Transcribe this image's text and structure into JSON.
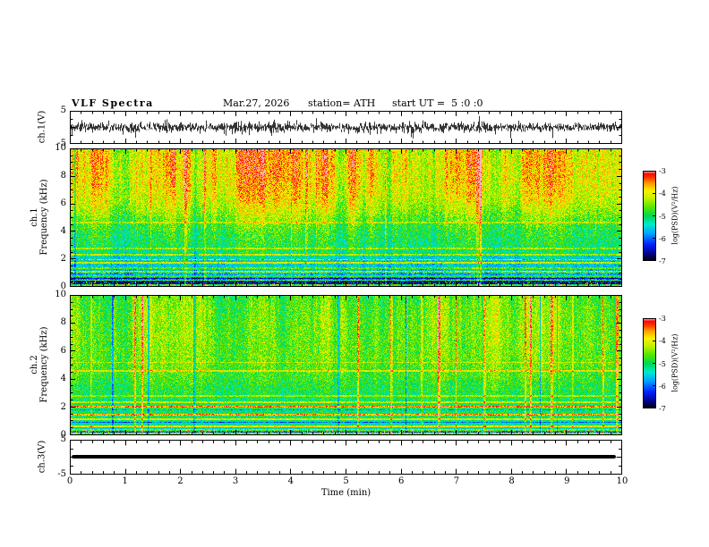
{
  "header": {
    "title": "VLF Spectra",
    "date": "Mar.27, 2026",
    "station": "station= ATH",
    "start_ut": "start UT =  5 :0 :0"
  },
  "colormap": [
    [
      0.0,
      "#000000"
    ],
    [
      0.07,
      "#000080"
    ],
    [
      0.18,
      "#0020ff"
    ],
    [
      0.3,
      "#00a0ff"
    ],
    [
      0.4,
      "#00e8d0"
    ],
    [
      0.5,
      "#00d850"
    ],
    [
      0.6,
      "#58e800"
    ],
    [
      0.7,
      "#c8f000"
    ],
    [
      0.78,
      "#f8f000"
    ],
    [
      0.86,
      "#ffa000"
    ],
    [
      0.93,
      "#ff3000"
    ],
    [
      0.97,
      "#ff0808"
    ],
    [
      1.0,
      "#ffb4b4"
    ]
  ],
  "chart_data": [
    {
      "id": "ch1_voltage",
      "type": "line",
      "ylabel": "ch.1(V)",
      "ylim": [
        -5,
        5
      ],
      "yticks": [
        5,
        -5
      ],
      "ytick_marks": [
        5,
        0,
        -5
      ],
      "y_minor": 2.5,
      "xlim": [
        0,
        10
      ],
      "x_minor": 0.2,
      "seed": 71,
      "sigma": 0.55,
      "spike_prob": 0.012,
      "spike_amp": 2.6,
      "note": "broadband noise waveform centred on 0 V, envelope roughly ±2 V with occasional spikes toward ±4 V"
    },
    {
      "id": "ch1_spectrogram",
      "type": "heatmap",
      "channel": "ch.1",
      "ylabel": "Frequency (kHz)",
      "ylim": [
        0,
        10
      ],
      "yticks": [
        0,
        2,
        4,
        6,
        8,
        10
      ],
      "y_minor": 0.5,
      "xlim": [
        0,
        10
      ],
      "x_minor": 0.2,
      "clim": [
        -7,
        -3
      ],
      "colorbar_ticks": [
        -3,
        -4,
        -5,
        -6,
        -7
      ],
      "colorbar_label": "log(PSD)(V²/Hz)",
      "profile": [
        [
          0,
          -7
        ],
        [
          0.15,
          -6.8
        ],
        [
          0.3,
          -6.3
        ],
        [
          0.5,
          -6.0
        ],
        [
          0.8,
          -5.75
        ],
        [
          1.2,
          -5.5
        ],
        [
          1.8,
          -5.5
        ],
        [
          2.2,
          -5.3
        ],
        [
          2.6,
          -5.05
        ],
        [
          3.2,
          -4.95
        ],
        [
          4.0,
          -4.85
        ],
        [
          4.8,
          -4.6
        ],
        [
          5.6,
          -4.3
        ],
        [
          6.5,
          -4.05
        ],
        [
          7.5,
          -3.95
        ],
        [
          8.5,
          -3.9
        ],
        [
          10,
          -3.95
        ]
      ],
      "h_lines": [
        {
          "f": 0.1,
          "amp": 2.0
        },
        {
          "f": 0.45,
          "amp": 1.2
        },
        {
          "f": 0.75,
          "amp": 0.9
        },
        {
          "f": 1.05,
          "amp": 1.1
        },
        {
          "f": 1.35,
          "amp": 0.8
        },
        {
          "f": 1.7,
          "amp": 1.3
        },
        {
          "f": 1.95,
          "amp": 1.7
        },
        {
          "f": 2.3,
          "amp": 0.9
        },
        {
          "f": 2.75,
          "amp": 0.6
        },
        {
          "f": 0.3,
          "amp": -0.8,
          "w": 0.04
        },
        {
          "f": 0.6,
          "amp": -0.6,
          "w": 0.04
        },
        {
          "f": 4.65,
          "amp": 0.45
        }
      ],
      "walk_amp": 1.0,
      "streak_prob": 0.022,
      "streak_amp": 1.0,
      "streak_neg_frac": 0.3,
      "noise": 0.95,
      "seed": 1301,
      "note": "red/orange above ~5 kHz, green 2.5-5 kHz, cyan/blue 0.5-2.5 kHz with horizontal interference lines, near-black below 0.3 kHz; vertical bright and dark streaks"
    },
    {
      "id": "ch2_spectrogram",
      "type": "heatmap",
      "channel": "ch.2",
      "ylabel": "Frequency (kHz)",
      "ylim": [
        0,
        10
      ],
      "yticks": [
        0,
        2,
        4,
        6,
        8,
        10
      ],
      "y_minor": 0.5,
      "xlim": [
        0,
        10
      ],
      "x_minor": 0.2,
      "clim": [
        -7,
        -3
      ],
      "colorbar_ticks": [
        -3,
        -4,
        -5,
        -6,
        -7
      ],
      "colorbar_label": "log(PSD)(V²/Hz)",
      "profile": [
        [
          0,
          -7
        ],
        [
          0.12,
          -6.6
        ],
        [
          0.25,
          -5.8
        ],
        [
          0.45,
          -5.3
        ],
        [
          0.8,
          -5.1
        ],
        [
          1.5,
          -5.0
        ],
        [
          2.5,
          -4.95
        ],
        [
          3.5,
          -4.8
        ],
        [
          4.5,
          -4.6
        ],
        [
          5.5,
          -4.5
        ],
        [
          7,
          -4.45
        ],
        [
          8.5,
          -4.45
        ],
        [
          10,
          -4.55
        ]
      ],
      "h_lines": [
        {
          "f": 0.1,
          "amp": 2.2
        },
        {
          "f": 0.35,
          "amp": 1.0
        },
        {
          "f": 0.6,
          "amp": 1.3
        },
        {
          "f": 0.9,
          "amp": -0.9,
          "w": 0.05
        },
        {
          "f": 1.1,
          "amp": 1.0
        },
        {
          "f": 1.45,
          "amp": 1.4
        },
        {
          "f": 1.8,
          "amp": -0.7,
          "w": 0.05
        },
        {
          "f": 2.0,
          "amp": 1.5
        },
        {
          "f": 2.35,
          "amp": 0.8
        },
        {
          "f": 2.8,
          "amp": 0.6
        },
        {
          "f": 4.6,
          "amp": 0.7
        },
        {
          "f": 5.2,
          "amp": 0.4
        }
      ],
      "walk_amp": 0.65,
      "streak_prob": 0.04,
      "streak_amp": 1.15,
      "streak_neg_frac": 0.18,
      "noise": 0.85,
      "seed": 2477,
      "note": "yellow-green across 2-10 kHz with many red vertical streaks, green 0.5-2 kHz crossed by bright and dark horizontal lines, near-black below 0.2 kHz"
    },
    {
      "id": "ch3_voltage",
      "type": "line",
      "ylabel": "ch.3(V)",
      "ylim": [
        -5,
        5
      ],
      "yticks": [
        5,
        -5
      ],
      "ytick_marks": [
        5,
        0,
        -5
      ],
      "y_minor": 2.5,
      "xlim": [
        0,
        10
      ],
      "x_minor": 0.2,
      "xticks": [
        0,
        1,
        2,
        3,
        4,
        5,
        6,
        7,
        8,
        9,
        10
      ],
      "xlabel": "Time (min)",
      "value": 0,
      "line_width": 4,
      "note": "flat thick black line at 0 V (no signal)"
    }
  ]
}
